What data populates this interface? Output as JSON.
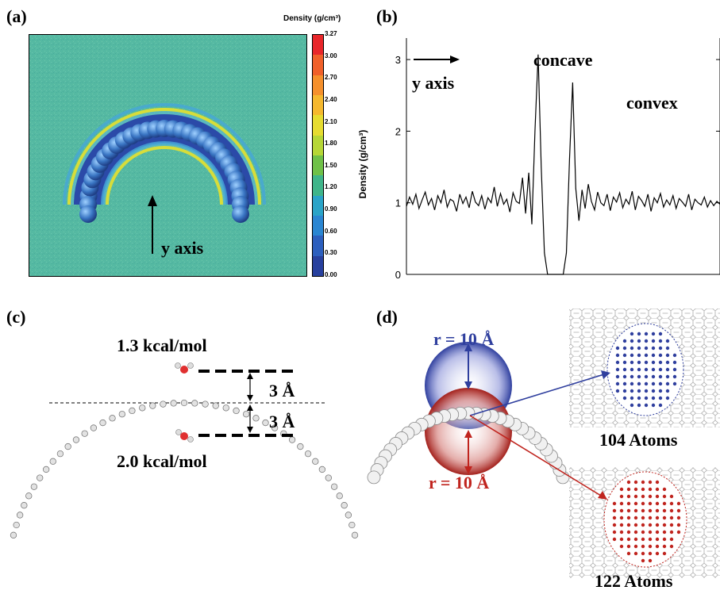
{
  "panels": {
    "a": {
      "label": "(a)",
      "colorbar_title": "Density (g/cm³)",
      "colorbar_ticks": [
        "3.27",
        "3.00",
        "2.70",
        "2.40",
        "2.10",
        "1.80",
        "1.50",
        "1.20",
        "0.90",
        "0.60",
        "0.30",
        "0.00"
      ],
      "colorbar_colors": [
        "#e8262a",
        "#f0602a",
        "#f5902c",
        "#f5b82e",
        "#e6dc30",
        "#b6d736",
        "#6fc148",
        "#3fb58a",
        "#2aa4c8",
        "#2a86d2",
        "#2c5fbe",
        "#27409e"
      ],
      "annotation": "y axis",
      "background_color": "#52b8a0",
      "arc_color": "#3a76c4"
    },
    "b": {
      "label": "(b)",
      "ylabel": "Density (g/cm³)",
      "yticks": [
        "0",
        "1",
        "2",
        "3"
      ],
      "annotation": "y axis",
      "peak_left_label": "concave",
      "peak_right_label": "convex"
    },
    "c": {
      "label": "(c)",
      "top_energy": "1.3 kcal/mol",
      "bottom_energy": "2.0 kcal/mol",
      "top_distance": "3 Å",
      "bottom_distance": "3 Å"
    },
    "d": {
      "label": "(d)",
      "top_radius": "r = 10 Å",
      "bottom_radius": "r = 10 Å",
      "top_count": "104 Atoms",
      "bottom_count": "122 Atoms",
      "top_color": "#2f3f9e",
      "bottom_color": "#c0241e"
    }
  },
  "chart_data": {
    "type": "line",
    "xlabel": "",
    "ylabel": "Density (g/cm³)",
    "ylim": [
      0,
      3.3
    ],
    "series": [
      {
        "x": [
          0,
          1,
          2,
          3,
          4,
          5,
          6,
          7,
          8,
          9,
          10,
          11,
          12,
          13,
          14,
          15,
          16,
          17,
          18,
          19,
          20,
          21,
          22,
          23,
          24,
          25,
          26,
          27,
          28,
          29,
          30,
          31,
          32,
          33,
          34,
          35,
          36,
          37,
          38,
          39,
          40,
          41,
          42,
          43,
          44,
          45,
          46,
          47,
          48,
          49,
          50,
          51,
          52,
          53,
          54,
          55,
          56,
          57,
          58,
          59,
          60,
          61,
          62,
          63,
          64,
          65,
          66,
          67,
          68,
          69,
          70,
          71,
          72,
          73,
          74,
          75,
          76,
          77,
          78,
          79,
          80,
          81,
          82,
          83,
          84,
          85,
          86,
          87,
          88,
          89,
          90,
          91,
          92,
          93,
          94,
          95,
          96,
          97,
          98,
          99,
          100
        ],
        "values": [
          0.95,
          1.08,
          0.98,
          1.12,
          0.92,
          1.04,
          1.15,
          0.97,
          1.06,
          0.9,
          1.1,
          1.0,
          1.18,
          0.94,
          1.05,
          1.02,
          0.88,
          1.12,
          0.99,
          1.08,
          0.93,
          1.16,
          1.01,
          0.96,
          1.1,
          0.91,
          1.07,
          1.0,
          1.22,
          0.95,
          1.13,
          0.98,
          1.05,
          0.87,
          1.14,
          1.02,
          0.99,
          1.35,
          0.85,
          1.42,
          0.7,
          2.0,
          3.07,
          1.5,
          0.3,
          0.0,
          0.0,
          0.0,
          0.0,
          0.0,
          0.0,
          0.3,
          1.6,
          2.68,
          1.2,
          0.75,
          1.18,
          0.92,
          1.26,
          1.02,
          0.9,
          1.15,
          1.0,
          0.96,
          1.12,
          0.89,
          1.08,
          1.01,
          1.14,
          0.93,
          1.05,
          0.98,
          1.16,
          0.9,
          1.09,
          1.03,
          0.95,
          1.12,
          0.88,
          1.07,
          1.0,
          1.13,
          0.94,
          1.04,
          0.97,
          1.1,
          0.92,
          1.06,
          1.01,
          0.95,
          1.12,
          0.9,
          1.05,
          1.0,
          0.97,
          1.08,
          0.94,
          1.03,
          0.96,
          1.02,
          0.98
        ]
      }
    ],
    "annotations": [
      "concave",
      "convex",
      "y axis"
    ]
  }
}
